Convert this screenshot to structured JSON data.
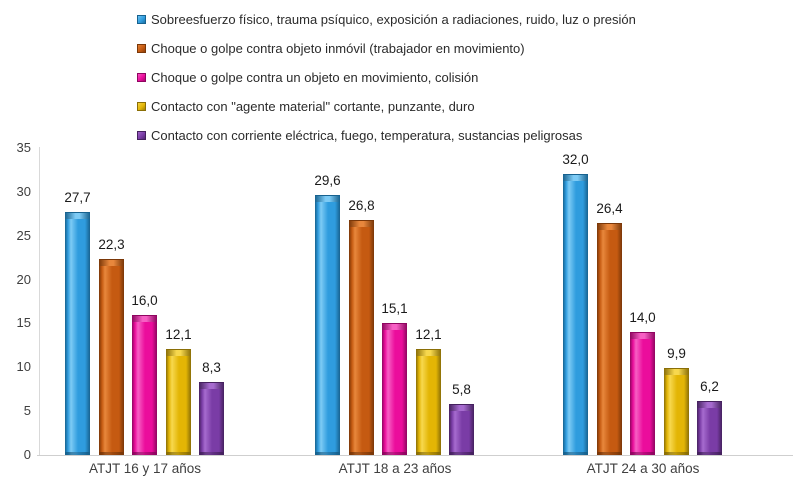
{
  "chart_data": {
    "type": "bar",
    "title": "",
    "categories": [
      "ATJT 16 y 17 años",
      "ATJT 18 a 23 años",
      "ATJT 24 a 30 años"
    ],
    "series": [
      {
        "name": "Sobreesfuerzo físico, trauma psíquico, exposición a radiaciones, ruido, luz o presión",
        "values": [
          27.7,
          29.6,
          32.0
        ],
        "labels": [
          "27,7",
          "29,6",
          "32,0"
        ],
        "color": "#2F9CDE",
        "color_light": "#7DCBF5",
        "color_dark": "#17628F"
      },
      {
        "name": "Choque o golpe contra objeto inmóvil (trabajador en movimiento)",
        "values": [
          22.3,
          26.8,
          26.4
        ],
        "labels": [
          "22,3",
          "26,8",
          "26,4"
        ],
        "color": "#C55A11",
        "color_light": "#E8873C",
        "color_dark": "#7A3708"
      },
      {
        "name": "Choque o golpe contra un objeto en movimiento, colisión",
        "values": [
          16.0,
          15.1,
          14.0
        ],
        "labels": [
          "16,0",
          "15,1",
          "14,0"
        ],
        "color": "#EB0D9C",
        "color_light": "#F75FC4",
        "color_dark": "#8F0560"
      },
      {
        "name": "Contacto con \"agente material\" cortante, punzante, duro",
        "values": [
          12.1,
          12.1,
          9.9
        ],
        "labels": [
          "12,1",
          "12,1",
          "9,9"
        ],
        "color": "#E3B505",
        "color_light": "#F7D84E",
        "color_dark": "#8A6E06"
      },
      {
        "name": "Contacto con corriente eléctrica, fuego, temperatura, sustancias peligrosas",
        "values": [
          8.3,
          5.8,
          6.2
        ],
        "labels": [
          "8,3",
          "5,8",
          "6,2"
        ],
        "color": "#7A3CA6",
        "color_light": "#A66BCF",
        "color_dark": "#45215F"
      }
    ],
    "ylim": [
      0,
      35
    ],
    "yticks": [
      35,
      30,
      25,
      20,
      15,
      10,
      5,
      0
    ],
    "ytick_labels": [
      "35",
      "30",
      "25",
      "20",
      "15",
      "10",
      "5",
      "0"
    ],
    "grid": false,
    "legend_position": "top-left",
    "decimal_separator": ","
  }
}
